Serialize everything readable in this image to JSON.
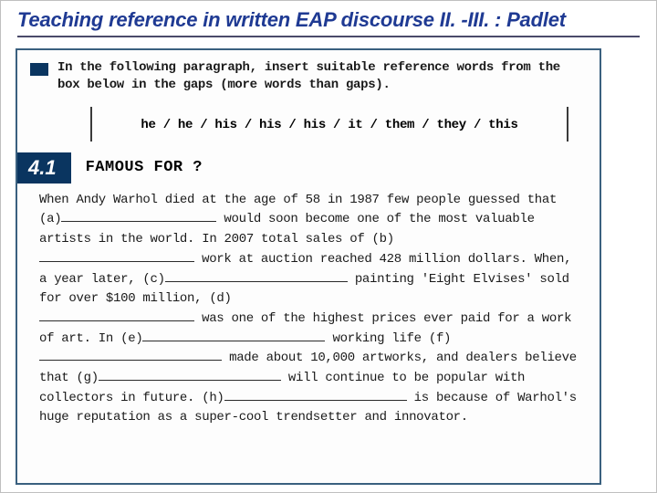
{
  "slide": {
    "title": "Teaching reference in written EAP discourse II. -III. : Padlet"
  },
  "exercise": {
    "instruction": "In the following paragraph, insert suitable reference words from the box below in the gaps (more words than gaps).",
    "word_bank": "he / he / his / his / his / it / them / they / this",
    "section_number": "4.1",
    "section_title": "FAMOUS FOR ?",
    "passage": {
      "p1a": "When Andy Warhol died at the age of 58 in 1987 few people guessed that (a)",
      "p1b": " would soon become one of the most valuable artists in the world. In 2007 total sales of (b)",
      "p1c": " work at auction reached 428 million dollars. When, a year later, (c)",
      "p1d": " painting 'Eight Elvises' sold for over $100 million, (d)",
      "p1e": " was one of the highest prices ever paid for a work of art. In (e)",
      "p1f": " working life (f)",
      "p1g": " made about 10,000 artworks, and dealers believe that (g)",
      "p1h": " will continue to be popular with collectors in future. (h)",
      "p1i": " is because of Warhol's huge reputation as a super-cool trendsetter and innovator."
    }
  },
  "colors": {
    "title": "#1f3a93",
    "section_bg": "#0a3560",
    "border": "#3a607f"
  }
}
